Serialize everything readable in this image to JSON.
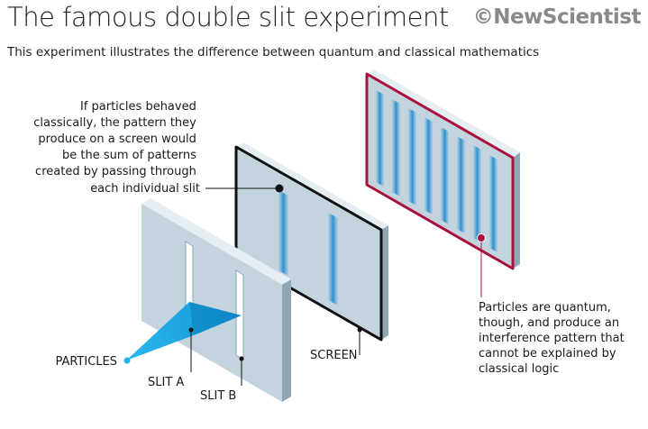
{
  "header": {
    "title": "The famous double slit experiment",
    "brand": "©NewScientist",
    "subtitle": "This experiment illustrates the difference between quantum and classical mathematics"
  },
  "labels": {
    "classical_annotation": [
      "If particles behaved",
      "classically, the pattern they",
      "produce on a screen would",
      "be the sum of patterns",
      "created by passing through",
      "each individual slit"
    ],
    "quantum_annotation": [
      "Particles are quantum,",
      "though, and produce an",
      "interference pattern that",
      "cannot be explained by",
      "classical logic"
    ],
    "particles": "PARTICLES",
    "slit_a": "SLIT A",
    "slit_b": "SLIT B",
    "screen": "SCREEN"
  },
  "colors": {
    "panel_face": "#c3d4de",
    "panel_side": "#8fa6b4",
    "panel_top": "#e5eef3",
    "beam": "#0a9bd8",
    "fringe": "#2a8fd0",
    "quantum_border": "#a8123c",
    "screen_border": "#111111"
  }
}
